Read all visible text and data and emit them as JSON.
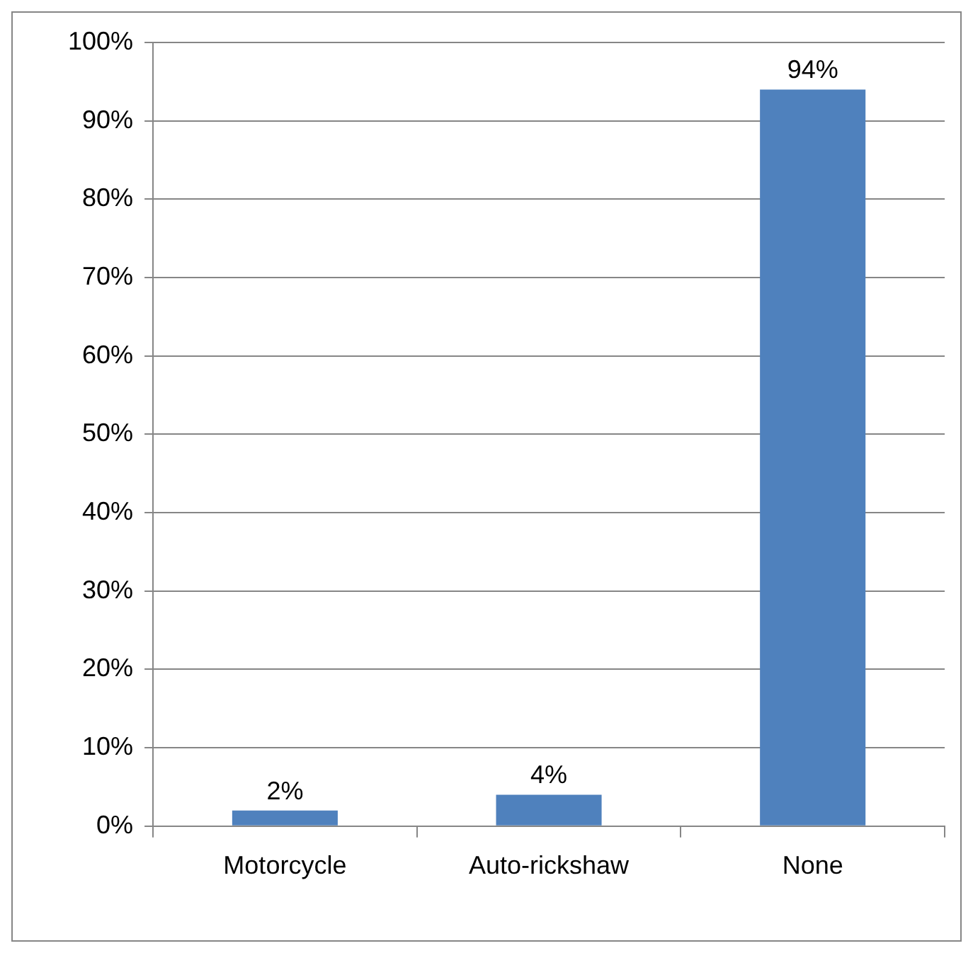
{
  "chart_data": {
    "type": "bar",
    "categories": [
      "Motorcycle",
      "Auto-rickshaw",
      "None"
    ],
    "values": [
      2,
      4,
      94
    ],
    "color": "#4f81bd",
    "value_labels": [
      "2%",
      "4%",
      "94%"
    ],
    "ylim": [
      0,
      100
    ],
    "yticks": [
      {
        "value": 0,
        "label": "0%"
      },
      {
        "value": 10,
        "label": "10%"
      },
      {
        "value": 20,
        "label": "20%"
      },
      {
        "value": 30,
        "label": "30%"
      },
      {
        "value": 40,
        "label": "40%"
      },
      {
        "value": 50,
        "label": "50%"
      },
      {
        "value": 60,
        "label": "60%"
      },
      {
        "value": 70,
        "label": "70%"
      },
      {
        "value": 80,
        "label": "80%"
      },
      {
        "value": 90,
        "label": "90%"
      },
      {
        "value": 100,
        "label": "100%"
      }
    ],
    "grid": "y",
    "legend": false
  }
}
